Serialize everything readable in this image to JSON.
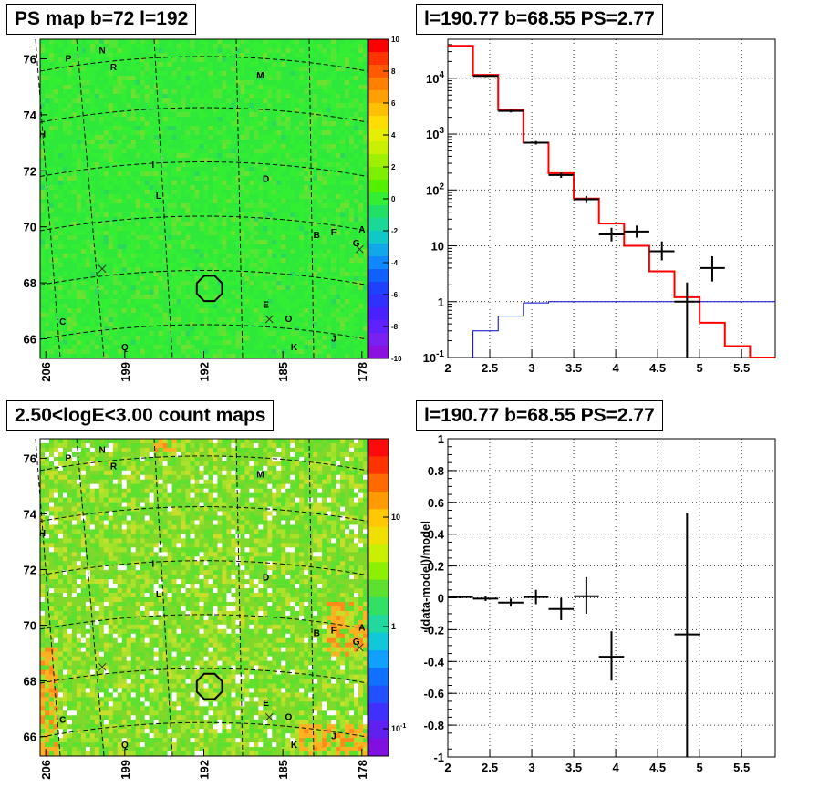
{
  "panels": {
    "ps_map": {
      "title": "PS map b=72 l=192"
    },
    "spectrum": {
      "title": "l=190.77 b=68.55 PS=2.77"
    },
    "count_map": {
      "title": "2.50<logE<3.00 count maps"
    },
    "residual": {
      "title": "l=190.77 b=68.55 PS=2.77"
    }
  },
  "chart_data": [
    {
      "type": "heatmap",
      "name": "ps-map",
      "title": "PS map b=72 l=192",
      "x_tick_labels": [
        "206",
        "199",
        "192",
        "185",
        "178"
      ],
      "y_tick_labels": [
        "66",
        "68",
        "70",
        "72",
        "74",
        "76"
      ],
      "xlim": [
        206.5,
        177.5
      ],
      "ylim": [
        65.3,
        76.7
      ],
      "colorbar": {
        "min": -10,
        "max": 10,
        "ticks": [
          "10",
          "8",
          "6",
          "4",
          "2",
          "0",
          "-2",
          "-4",
          "-6",
          "-8",
          "-10"
        ]
      },
      "dominant_value": 0,
      "source_labels": [
        {
          "label": "P",
          "l": 204.0,
          "b": 75.9
        },
        {
          "label": "N",
          "l": 201.0,
          "b": 76.2
        },
        {
          "label": "R",
          "l": 200.0,
          "b": 75.6
        },
        {
          "label": "M",
          "l": 187.0,
          "b": 75.3
        },
        {
          "label": "H",
          "l": 206.3,
          "b": 73.2
        },
        {
          "label": "I",
          "l": 196.5,
          "b": 72.1
        },
        {
          "label": "D",
          "l": 186.5,
          "b": 71.6
        },
        {
          "label": "L",
          "l": 196.0,
          "b": 71.0
        },
        {
          "label": "B",
          "l": 182.0,
          "b": 69.6
        },
        {
          "label": "F",
          "l": 180.5,
          "b": 69.7
        },
        {
          "label": "A",
          "l": 178.0,
          "b": 69.8
        },
        {
          "label": "G",
          "l": 178.5,
          "b": 69.3
        },
        {
          "label": "E",
          "l": 186.5,
          "b": 67.1
        },
        {
          "label": "O",
          "l": 184.5,
          "b": 66.6
        },
        {
          "label": "C",
          "l": 204.5,
          "b": 66.5
        },
        {
          "label": "Q",
          "l": 199.0,
          "b": 65.6
        },
        {
          "label": "K",
          "l": 184.0,
          "b": 65.6
        },
        {
          "label": "J",
          "l": 180.5,
          "b": 65.9
        }
      ],
      "crosses": [
        {
          "l": 201.0,
          "b": 68.5
        },
        {
          "l": 186.2,
          "b": 66.7
        },
        {
          "l": 178.2,
          "b": 69.2
        }
      ],
      "circle": {
        "l": 191.5,
        "b": 67.8
      }
    },
    {
      "type": "line",
      "name": "spectrum",
      "title": "l=190.77 b=68.55 PS=2.77",
      "xlabel": "",
      "ylabel": "",
      "xlim": [
        2.0,
        5.9
      ],
      "ylim": [
        0.1,
        50000
      ],
      "y_scale": "log",
      "x_ticks": [
        2,
        2.5,
        3,
        3.5,
        4,
        4.5,
        5,
        5.5
      ],
      "y_tick_labels": [
        "10^-1",
        "1",
        "10",
        "10^2",
        "10^3",
        "10^4"
      ],
      "grid": true,
      "series": [
        {
          "color": "#ff0000",
          "kind": "step",
          "bin_edges": [
            2.0,
            2.3,
            2.6,
            2.9,
            3.2,
            3.5,
            3.8,
            4.1,
            4.4,
            4.7,
            5.0,
            5.3,
            5.6,
            5.9
          ],
          "values": [
            38000,
            11500,
            2700,
            700,
            200,
            70,
            25,
            10,
            3.5,
            1.2,
            0.42,
            0.16,
            0.08
          ]
        },
        {
          "color": "#0000cc",
          "kind": "step",
          "bin_edges": [
            2.3,
            2.6,
            2.9,
            3.2,
            5.9
          ],
          "values": [
            0.3,
            0.55,
            0.95,
            1.0
          ]
        },
        {
          "color": "#000000",
          "kind": "points",
          "points": [
            {
              "x": 2.45,
              "y": 11000,
              "xerr": 0.15,
              "ylo": 10500,
              "yhi": 11500
            },
            {
              "x": 2.75,
              "y": 2600,
              "xerr": 0.15,
              "ylo": 2450,
              "yhi": 2750
            },
            {
              "x": 3.05,
              "y": 700,
              "xerr": 0.15,
              "ylo": 650,
              "yhi": 750
            },
            {
              "x": 3.35,
              "y": 185,
              "xerr": 0.15,
              "ylo": 165,
              "yhi": 205
            },
            {
              "x": 3.65,
              "y": 68,
              "xerr": 0.15,
              "ylo": 58,
              "yhi": 78
            },
            {
              "x": 3.95,
              "y": 16,
              "xerr": 0.15,
              "ylo": 12,
              "yhi": 21
            },
            {
              "x": 4.25,
              "y": 18,
              "xerr": 0.15,
              "ylo": 14,
              "yhi": 23
            },
            {
              "x": 4.55,
              "y": 8.0,
              "xerr": 0.15,
              "ylo": 5.5,
              "yhi": 12
            },
            {
              "x": 4.85,
              "y": 1.0,
              "xerr": 0.15,
              "ylo": 0.1,
              "yhi": 2.2
            },
            {
              "x": 5.15,
              "y": 4.0,
              "xerr": 0.15,
              "ylo": 2.3,
              "yhi": 6.5
            }
          ]
        }
      ]
    },
    {
      "type": "heatmap",
      "name": "count-map",
      "title": "2.50<logE<3.00 count maps",
      "x_tick_labels": [
        "206",
        "199",
        "192",
        "185",
        "178"
      ],
      "y_tick_labels": [
        "66",
        "68",
        "70",
        "72",
        "74",
        "76"
      ],
      "xlim": [
        206.5,
        177.5
      ],
      "ylim": [
        65.3,
        76.7
      ],
      "colorbar": {
        "scale": "log",
        "ticks": [
          "10",
          "1",
          "10^-1"
        ]
      },
      "circle": {
        "l": 191.5,
        "b": 67.8
      }
    },
    {
      "type": "scatter",
      "name": "residual",
      "title": "l=190.77 b=68.55 PS=2.77",
      "xlabel": "",
      "ylabel": "(data-model)/model",
      "xlim": [
        2.0,
        5.9
      ],
      "ylim": [
        -1,
        1
      ],
      "x_ticks": [
        2,
        2.5,
        3,
        3.5,
        4,
        4.5,
        5,
        5.5
      ],
      "y_ticks": [
        -1,
        -0.8,
        -0.6,
        -0.4,
        -0.2,
        0,
        0.2,
        0.4,
        0.6,
        0.8,
        1
      ],
      "grid": true,
      "points": [
        {
          "x": 2.15,
          "y": 0.005,
          "xerr": 0.15,
          "ylo": -0.003,
          "yhi": 0.013
        },
        {
          "x": 2.45,
          "y": -0.005,
          "xerr": 0.15,
          "ylo": -0.02,
          "yhi": 0.01
        },
        {
          "x": 2.75,
          "y": -0.03,
          "xerr": 0.15,
          "ylo": -0.055,
          "yhi": -0.005
        },
        {
          "x": 3.05,
          "y": 0.005,
          "xerr": 0.15,
          "ylo": -0.04,
          "yhi": 0.05
        },
        {
          "x": 3.35,
          "y": -0.07,
          "xerr": 0.15,
          "ylo": -0.14,
          "yhi": 0.0
        },
        {
          "x": 3.65,
          "y": 0.01,
          "xerr": 0.15,
          "ylo": -0.1,
          "yhi": 0.13
        },
        {
          "x": 3.95,
          "y": -0.37,
          "xerr": 0.15,
          "ylo": -0.52,
          "yhi": -0.21
        },
        {
          "x": 4.85,
          "y": -0.23,
          "xerr": 0.15,
          "ylo": -1.0,
          "yhi": 0.53
        }
      ]
    }
  ]
}
